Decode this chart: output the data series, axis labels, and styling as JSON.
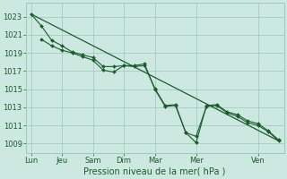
{
  "background_color": "#cce8e0",
  "grid_color": "#9dc8bc",
  "line_color": "#1a5c2a",
  "marker_color": "#1a5c2a",
  "xlabel": "Pression niveau de la mer( hPa )",
  "ylim": [
    1008.0,
    1024.5
  ],
  "yticks": [
    1009,
    1011,
    1013,
    1015,
    1017,
    1019,
    1021,
    1023
  ],
  "xtick_labels": [
    "Lun",
    "Jeu",
    "Sam",
    "Dim",
    "Mar",
    "Mer",
    "Ven"
  ],
  "xtick_positions": [
    0,
    3,
    6,
    9,
    12,
    16,
    22
  ],
  "xlim": [
    -0.5,
    24.5
  ],
  "trend": {
    "x": [
      0,
      24
    ],
    "y": [
      1023.3,
      1009.3
    ]
  },
  "series1_x": [
    0,
    1,
    2,
    3,
    4,
    5,
    6,
    7,
    8,
    9,
    10,
    11,
    12,
    13,
    14,
    15,
    16,
    17,
    18,
    19,
    20,
    21,
    22,
    23,
    24
  ],
  "series1_y": [
    1023.3,
    1022.0,
    1020.4,
    1019.8,
    1019.1,
    1018.8,
    1018.5,
    1017.5,
    1017.5,
    1017.6,
    1017.5,
    1017.6,
    1015.1,
    1013.2,
    1013.3,
    1010.2,
    1009.1,
    1013.2,
    1013.3,
    1012.5,
    1012.2,
    1011.5,
    1011.2,
    1010.4,
    1009.4
  ],
  "series2_x": [
    1,
    2,
    3,
    4,
    5,
    6,
    7,
    8,
    9,
    10,
    11,
    12,
    13,
    14,
    15,
    16,
    17,
    18,
    19,
    20,
    21,
    22,
    23,
    24
  ],
  "series2_y": [
    1020.5,
    1019.8,
    1019.3,
    1019.0,
    1018.6,
    1018.2,
    1017.1,
    1016.9,
    1017.6,
    1017.6,
    1017.8,
    1015.0,
    1013.1,
    1013.2,
    1010.2,
    1009.8,
    1013.1,
    1013.2,
    1012.4,
    1012.0,
    1011.3,
    1011.0,
    1010.3,
    1009.3
  ],
  "ytick_fontsize": 6,
  "xtick_fontsize": 6,
  "xlabel_fontsize": 7
}
